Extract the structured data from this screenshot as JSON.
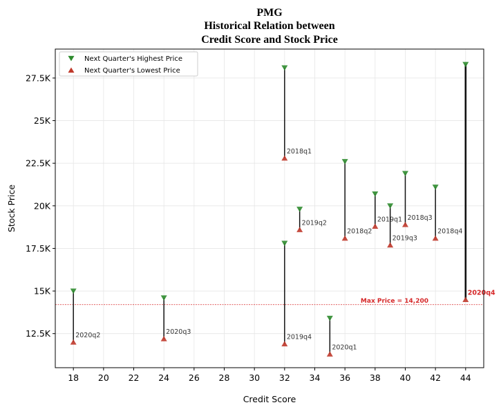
{
  "chart_data": {
    "type": "scatter",
    "title_lines": [
      "PMG",
      "Historical Relation between",
      "Credit Score and Stock Price"
    ],
    "xlabel": "Credit Score",
    "ylabel": "Stock Price",
    "xlim": [
      16.8,
      45.2
    ],
    "ylim": [
      10500,
      29200
    ],
    "xticks": [
      18,
      20,
      22,
      24,
      26,
      28,
      30,
      32,
      34,
      36,
      38,
      40,
      42,
      44
    ],
    "yticks": [
      12500,
      15000,
      17500,
      20000,
      22500,
      25000,
      27500
    ],
    "ytick_labels": [
      "12.5K",
      "15K",
      "17.5K",
      "20K",
      "22.5K",
      "25K",
      "27.5K"
    ],
    "grid": true,
    "legend_placement": "top-left",
    "series": [
      {
        "name": "Next Quarter's Highest Price",
        "marker": "triangle-down",
        "color": "#2e8b2e"
      },
      {
        "name": "Next Quarter's Lowest Price",
        "marker": "triangle-up",
        "color": "#c0392b"
      }
    ],
    "points": [
      {
        "label": "2020q2",
        "x": 18,
        "high": 15000,
        "low": 12000
      },
      {
        "label": "2020q3",
        "x": 24,
        "high": 14600,
        "low": 12200
      },
      {
        "label": "2018q1",
        "x": 32,
        "high": 28100,
        "low": 22800
      },
      {
        "label": "2019q4",
        "x": 32,
        "high": 17800,
        "low": 11900
      },
      {
        "label": "2019q2",
        "x": 33,
        "high": 19800,
        "low": 18600
      },
      {
        "label": "2020q1",
        "x": 35,
        "high": 13400,
        "low": 11300
      },
      {
        "label": "2018q2",
        "x": 36,
        "high": 22600,
        "low": 18100
      },
      {
        "label": "2019q1",
        "x": 38,
        "high": 20700,
        "low": 18800
      },
      {
        "label": "2019q3",
        "x": 39,
        "high": 20000,
        "low": 17700
      },
      {
        "label": "2018q3",
        "x": 40,
        "high": 21900,
        "low": 18900
      },
      {
        "label": "2018q4",
        "x": 42,
        "high": 21100,
        "low": 18100
      },
      {
        "label": "2020q4",
        "x": 44,
        "high": 28300,
        "low": 14500,
        "highlight": true
      }
    ],
    "max_price": {
      "value": 14200,
      "label": "Max Price = 14,200",
      "color": "#d62728"
    }
  }
}
